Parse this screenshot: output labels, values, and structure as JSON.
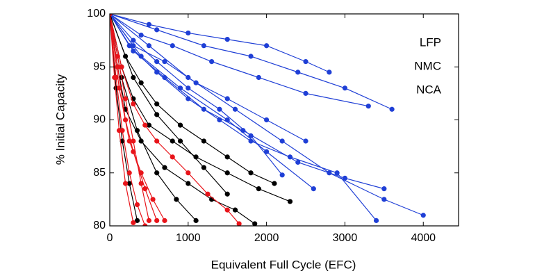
{
  "chart_data": {
    "type": "line",
    "xlabel": "Equivalent Full Cycle (EFC)",
    "ylabel": "% Initial Capacity",
    "xlim": [
      0,
      4450
    ],
    "ylim": [
      80,
      100
    ],
    "xticks": [
      0,
      1000,
      2000,
      3000,
      4000
    ],
    "yticks": [
      80,
      85,
      90,
      95,
      100
    ],
    "legend": "upper right",
    "series": [
      {
        "name": "LFP",
        "color": "#1f3fd6",
        "lines": [
          {
            "x": [
              0,
              500,
              1000,
              1500,
              2000,
              2500,
              2800
            ],
            "y": [
              100,
              99,
              98.2,
              97.6,
              97,
              95.5,
              94.5
            ]
          },
          {
            "x": [
              0,
              600,
              1200,
              1800,
              2400,
              3000,
              3600
            ],
            "y": [
              100,
              98.5,
              97,
              96,
              94.5,
              93,
              91
            ]
          },
          {
            "x": [
              0,
              400,
              800,
              1300,
              1900,
              2500,
              3300
            ],
            "y": [
              100,
              98,
              97,
              95.5,
              94,
              92.5,
              91.3
            ]
          },
          {
            "x": [
              0,
              300,
              700,
              1100,
              1500,
              2000,
              2500
            ],
            "y": [
              100,
              97,
              95.5,
              93.5,
              92,
              90,
              88
            ]
          },
          {
            "x": [
              0,
              250,
              600,
              1000,
              1400,
              1800,
              2300,
              2900,
              3400
            ],
            "y": [
              100,
              97,
              94.5,
              92,
              90,
              88,
              86.5,
              85,
              80.5
            ]
          },
          {
            "x": [
              0,
              300,
              700,
              1200,
              1700,
              2400,
              3000,
              3500
            ],
            "y": [
              100,
              96.5,
              94,
              91,
              89,
              86,
              84.5,
              83.5
            ]
          },
          {
            "x": [
              0,
              500,
              1000,
              1600,
              2200,
              2800,
              3500,
              4000
            ],
            "y": [
              100,
              97,
              94,
              91,
              88,
              85,
              82.5,
              81
            ]
          },
          {
            "x": [
              0,
              400,
              900,
              1500,
              2000,
              2600
            ],
            "y": [
              100,
              96,
              93,
              90,
              87,
              83.5
            ]
          },
          {
            "x": [
              0,
              300,
              600,
              1000,
              1400,
              1800,
              2200
            ],
            "y": [
              100,
              97.5,
              95.5,
              93,
              91,
              88.5,
              84.8
            ]
          }
        ]
      },
      {
        "name": "NMC",
        "color": "#000000",
        "lines": [
          {
            "x": [
              0,
              200,
              400,
              600,
              900,
              1200,
              1500,
              1800,
              2100
            ],
            "y": [
              100,
              96,
              93.5,
              91.5,
              89.5,
              88,
              86.5,
              85,
              84
            ]
          },
          {
            "x": [
              0,
              150,
              300,
              500,
              800,
              1100,
              1500,
              1900,
              2300
            ],
            "y": [
              100,
              95,
              92,
              89.5,
              88,
              86.5,
              85,
              83.5,
              82.3
            ]
          },
          {
            "x": [
              0,
              100,
              200,
              400,
              700,
              1000,
              1300,
              1600,
              1850
            ],
            "y": [
              100,
              95,
              91,
              88,
              85.5,
              84,
              82.5,
              81.5,
              80.2
            ]
          },
          {
            "x": [
              0,
              150,
              350,
              600,
              850,
              1100
            ],
            "y": [
              100,
              94,
              89,
              85,
              82.5,
              80.5
            ]
          },
          {
            "x": [
              0,
              80,
              160,
              250,
              350
            ],
            "y": [
              100,
              93,
              88,
              84,
              80.5
            ]
          },
          {
            "x": [
              0,
              300,
              600,
              900,
              1200,
              1500
            ],
            "y": [
              100,
              94,
              90.5,
              88,
              85.5,
              83
            ]
          }
        ]
      },
      {
        "name": "NCA",
        "color": "#e8141a",
        "lines": [
          {
            "x": [
              0,
              150,
              300,
              450,
              600,
              800,
              1000,
              1250,
              1500,
              1650
            ],
            "y": [
              100,
              95,
              91.5,
              89.5,
              88,
              86.5,
              85,
              83,
              81.5,
              80.2
            ]
          },
          {
            "x": [
              0,
              100,
              200,
              300,
              450,
              600
            ],
            "y": [
              100,
              95,
              90,
              87,
              83.5,
              80.5
            ]
          },
          {
            "x": [
              0,
              80,
              160,
              250,
              350,
              450
            ],
            "y": [
              100,
              94,
              89,
              85,
              82,
              80
            ]
          },
          {
            "x": [
              0,
              120,
              250,
              400,
              550,
              700
            ],
            "y": [
              100,
              93,
              88,
              85,
              82.5,
              80.5
            ]
          },
          {
            "x": [
              0,
              60,
              120,
              200,
              300
            ],
            "y": [
              100,
              94,
              89,
              84,
              80.3
            ]
          },
          {
            "x": [
              0,
              100,
              200,
              300,
              400,
              500
            ],
            "y": [
              100,
              96,
              92,
              88,
              84,
              80.5
            ]
          }
        ]
      }
    ]
  }
}
